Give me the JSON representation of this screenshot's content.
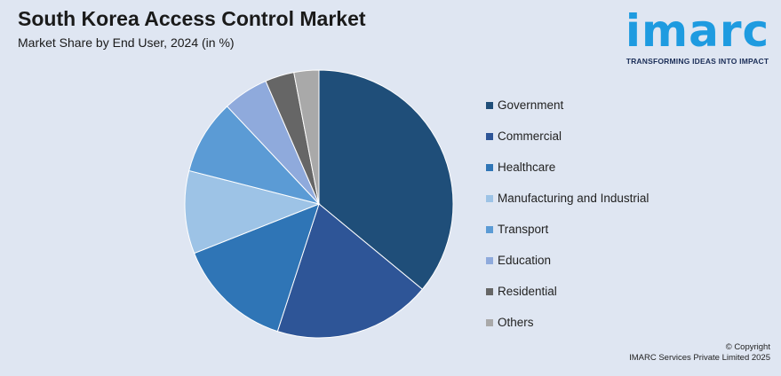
{
  "header": {
    "title": "South Korea Access Control Market",
    "subtitle": "Market Share by End User, 2024 (in %)"
  },
  "logo": {
    "word": "imarc",
    "tagline": "TRANSFORMING IDEAS INTO IMPACT",
    "color": "#1e9be0"
  },
  "chart_data": {
    "type": "pie",
    "title": "South Korea Access Control Market",
    "subtitle": "Market Share by End User, 2024 (in %)",
    "legend_position": "right",
    "series": [
      {
        "name": "Government",
        "value": 36,
        "color": "#1f4e79"
      },
      {
        "name": "Commercial",
        "value": 19,
        "color": "#2e5597"
      },
      {
        "name": "Healthcare",
        "value": 14,
        "color": "#2f75b6"
      },
      {
        "name": "Manufacturing and Industrial",
        "value": 10,
        "color": "#9dc3e6"
      },
      {
        "name": "Transport",
        "value": 9,
        "color": "#5b9bd5"
      },
      {
        "name": "Education",
        "value": 5.5,
        "color": "#8faadc"
      },
      {
        "name": "Residential",
        "value": 3.5,
        "color": "#666666"
      },
      {
        "name": "Others",
        "value": 3,
        "color": "#a9a9a9"
      }
    ]
  },
  "footer": {
    "copyright": "© Copyright",
    "company": "IMARC Services Private Limited 2025"
  }
}
